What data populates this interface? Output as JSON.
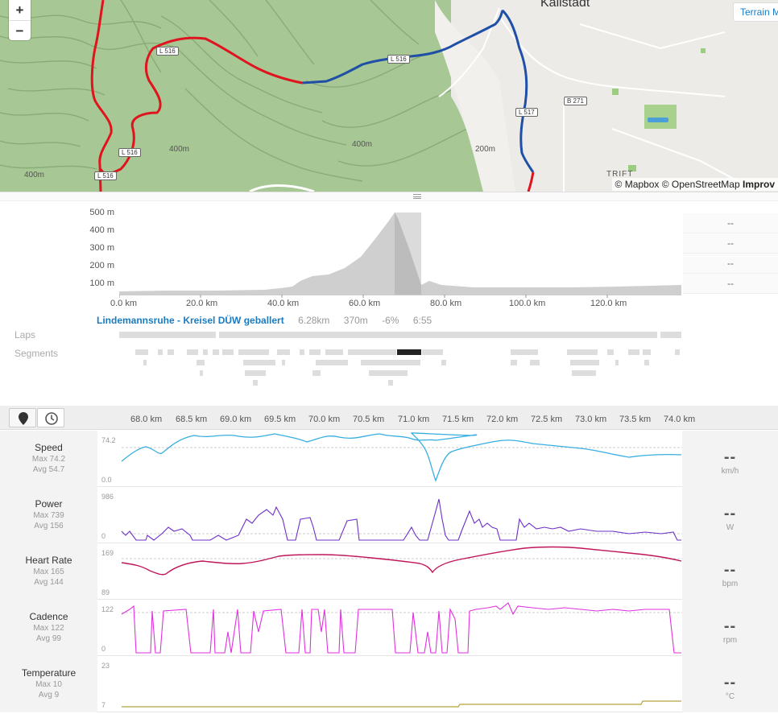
{
  "map": {
    "zoom_in": "+",
    "zoom_out": "−",
    "terrain_label": "Terrain M",
    "attribution_1": "© Mapbox",
    "attribution_2": "© OpenStreetMap",
    "attribution_3": "Improv",
    "town_name": "Kallstadt",
    "road_labels": [
      "L 516",
      "B 271",
      "L 517",
      "L 516",
      "L 516",
      "L 516"
    ],
    "contour_labels": [
      "400m",
      "400m",
      "200m",
      "400m"
    ],
    "place_label": "TRIFT",
    "colors": {
      "route_red": "#e0141e",
      "route_blue": "#1f4fa6"
    }
  },
  "elevation": {
    "y_labels": [
      "500 m",
      "400 m",
      "300 m",
      "200 m",
      "100 m"
    ],
    "x_labels": [
      "0.0 km",
      "20.0 km",
      "40.0 km",
      "60.0 km",
      "80.0 km",
      "100.0 km",
      "120.0 km"
    ],
    "side_values": [
      "--",
      "--",
      "--",
      "--"
    ],
    "segment": {
      "name": "Lindemannsruhe - Kreisel DÜW geballert",
      "distance": "6.28km",
      "elevation": "370m",
      "grade": "-6%",
      "time": "6:55"
    },
    "laps_label": "Laps",
    "segments_label": "Segments"
  },
  "streams": {
    "km_labels": [
      "68.0 km",
      "68.5 km",
      "69.0 km",
      "69.5 km",
      "70.0 km",
      "70.5 km",
      "71.0 km",
      "71.5 km",
      "72.0 km",
      "72.5 km",
      "73.0 km",
      "73.5 km",
      "74.0 km"
    ],
    "rows": [
      {
        "name": "Speed",
        "max": "Max 74.2",
        "avg": "Avg 54.7",
        "value": "--",
        "unit": "km/h",
        "top": "74.2",
        "bottom": "0.0",
        "color": "#38aee0"
      },
      {
        "name": "Power",
        "max": "Max 739",
        "avg": "Avg 156",
        "value": "--",
        "unit": "W",
        "top": "986",
        "bottom": "0",
        "color": "#6d2fc7"
      },
      {
        "name": "Heart Rate",
        "max": "Max 165",
        "avg": "Avg 144",
        "value": "--",
        "unit": "bpm",
        "top": "169",
        "bottom": "89",
        "color": "#c0155a"
      },
      {
        "name": "Cadence",
        "max": "Max 122",
        "avg": "Avg 99",
        "value": "--",
        "unit": "rpm",
        "top": "122",
        "bottom": "0",
        "color": "#e030e0"
      },
      {
        "name": "Temperature",
        "max": "Max 10",
        "avg": "Avg 9",
        "value": "--",
        "unit": "°C",
        "top": "23",
        "bottom": "7",
        "color": "#b5a23a"
      }
    ]
  }
}
